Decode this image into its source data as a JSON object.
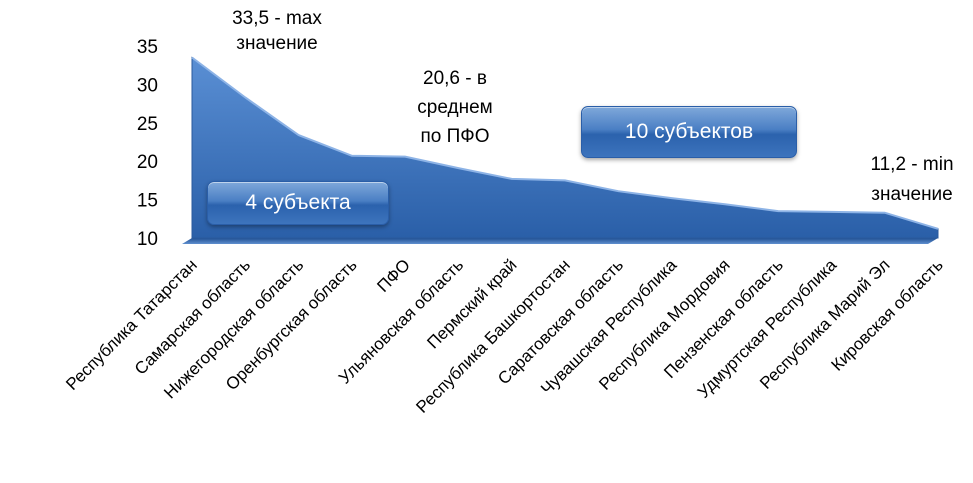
{
  "chart_data": {
    "type": "area",
    "categories": [
      "Республика Татарстан",
      "Самарская область",
      "Нижегородская область",
      "Оренбургская область",
      "ПФО",
      "Ульяновская область",
      "Пермский край",
      "Республика Башкортостан",
      "Саратовская область",
      "Чувашская Республика",
      "Республика Мордовия",
      "Пензенская область",
      "Удмуртская Республика",
      "Республика Марий Эл",
      "Кировская область"
    ],
    "values": [
      33.5,
      28.3,
      23.4,
      20.7,
      20.6,
      19.1,
      17.7,
      17.5,
      16.1,
      15.2,
      14.4,
      13.5,
      13.4,
      13.3,
      11.2
    ],
    "yticks": [
      "10",
      "15",
      "20",
      "25",
      "30",
      "35"
    ],
    "ylim": [
      10,
      35
    ],
    "color": "#2f6cb8",
    "annotations": {
      "max_line1": "33,5 - max",
      "max_line2": "значение",
      "avg_line1": "20,6 - в",
      "avg_line2": "среднем",
      "avg_line3": "по ПФО",
      "min_line1": "11,2 - min",
      "min_line2": "значение"
    },
    "badges": {
      "left": "4 субъекта",
      "right": "10 субъектов"
    }
  }
}
